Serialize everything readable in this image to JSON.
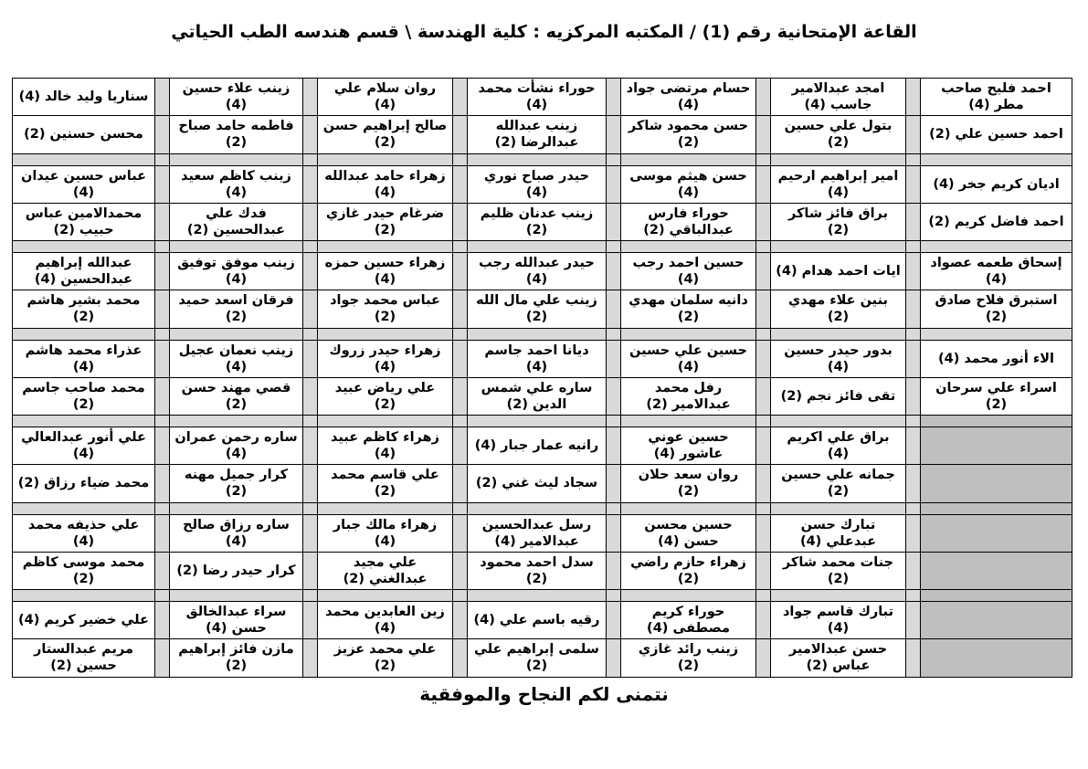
{
  "page": {
    "title": "القاعة الإمتحانية رقم (1) / المكتبه المركزيه : كلية الهندسة \\ قسم هندسه الطب الحياتي",
    "footer": "نتمنى لكم النجاح والموفقية"
  },
  "colors": {
    "separator_gray": "#d9d9d9",
    "empty_cell_gray": "#bfbfbf",
    "border": "#000000",
    "text": "#000000",
    "background": "#ffffff"
  },
  "seating": {
    "note_structure": "groups of 2 rows; 7 name columns ordered right-to-left; empty string = gray empty cell",
    "groups": [
      {
        "rows": [
          [
            "احمد فليح صاحب مطر (4)",
            "امجد عبدالامير جاسب (4)",
            "حسام مرتضى جواد (4)",
            "حوراء نشأت محمد (4)",
            "روان سلام علي (4)",
            "زينب علاء حسين (4)",
            "سناريا وليد خالد (4)"
          ],
          [
            "احمد حسين علي (2)",
            "بتول علي حسين (2)",
            "حسن محمود شاكر (2)",
            "زينب عبدالله عبدالرضا (2)",
            "صالح إبراهيم حسن (2)",
            "فاطمه حامد صباح (2)",
            "محسن حسنين (2)"
          ]
        ]
      },
      {
        "rows": [
          [
            "اديان كريم جخر (4)",
            "امير إبراهيم ارحيم (4)",
            "حسن هيثم موسى (4)",
            "حيدر صباح نوري (4)",
            "زهراء حامد عبدالله (4)",
            "زينب كاظم سعيد (4)",
            "عباس حسين عيدان (4)"
          ],
          [
            "احمد فاضل كريم (2)",
            "براق فائز شاكر (2)",
            "حوراء فارس عبدالباقي (2)",
            "زينب عدنان ظليم (2)",
            "ضرغام حيدر غازي (2)",
            "فدك علي عبدالحسين (2)",
            "محمدالامين عباس حبيب (2)"
          ]
        ]
      },
      {
        "rows": [
          [
            "إسحاق طعمه عصواد (4)",
            "ايات احمد هدام (4)",
            "حسين احمد رجب (4)",
            "حيدر عبدالله رجب (4)",
            "زهراء حسين حمزه (4)",
            "زينب موفق توفيق (4)",
            "عبدالله إبراهيم عبدالحسين (4)"
          ],
          [
            "استبرق فلاح صادق (2)",
            "بنين علاء مهدي (2)",
            "دانيه سلمان مهدي (2)",
            "زينب علي مال الله (2)",
            "عباس محمد جواد (2)",
            "فرقان اسعد حميد (2)",
            "محمد بشير هاشم (2)"
          ]
        ]
      },
      {
        "rows": [
          [
            "الاء أنور محمد (4)",
            "بدور حيدر حسين (4)",
            "حسين علي حسين (4)",
            "ديانا احمد جاسم (4)",
            "زهراء حيدر زروك (4)",
            "زينب نعمان عجيل (4)",
            "عذراء محمد هاشم (4)"
          ],
          [
            "اسراء علي سرحان (2)",
            "تقى فائز نجم (2)",
            "رفل محمد عبدالامير (2)",
            "ساره علي شمس الدين (2)",
            "علي رياض عبيد (2)",
            "قصي مهند حسن (2)",
            "محمد صاحب جاسم (2)"
          ]
        ]
      },
      {
        "rows": [
          [
            "",
            "براق علي اكريم (4)",
            "حسين عوني عاشور (4)",
            "رانيه عمار جبار (4)",
            "زهراء كاظم عبيد (4)",
            "ساره رحمن عمران (4)",
            "علي أنور عبدالعالي (4)"
          ],
          [
            "",
            "جمانه علي حسين (2)",
            "روان سعد حلان (2)",
            "سجاد ليث غني (2)",
            "علي قاسم محمد (2)",
            "كرار جميل مهنه (2)",
            "محمد ضياء رزاق (2)"
          ]
        ]
      },
      {
        "rows": [
          [
            "",
            "تبارك حسن عبدعلي (4)",
            "حسين محسن حسن (4)",
            "رسل عبدالحسين عبدالامير (4)",
            "زهراء مالك جبار (4)",
            "ساره رزاق صالح (4)",
            "علي حذيفه محمد (4)"
          ],
          [
            "",
            "جنات محمد شاكر (2)",
            "زهراء حازم راضي (2)",
            "سدل احمد محمود (2)",
            "علي مجيد عبدالغني (2)",
            "كرار حيدر رضا (2)",
            "محمد موسى كاظم (2)"
          ]
        ]
      },
      {
        "rows": [
          [
            "",
            "تبارك قاسم جواد (4)",
            "حوراء كريم مصطفى (4)",
            "رقيه باسم علي (4)",
            "زين العابدين محمد (4)",
            "سراء عبدالخالق حسن (4)",
            "علي خضير كريم (4)"
          ],
          [
            "",
            "حسن عبدالامير عباس (2)",
            "زينب رائد غازي (2)",
            "سلمى إبراهيم علي (2)",
            "علي محمد عزيز (2)",
            "مازن فائز إبراهيم (2)",
            "مريم عبدالستار حسين (2)"
          ]
        ]
      }
    ]
  }
}
